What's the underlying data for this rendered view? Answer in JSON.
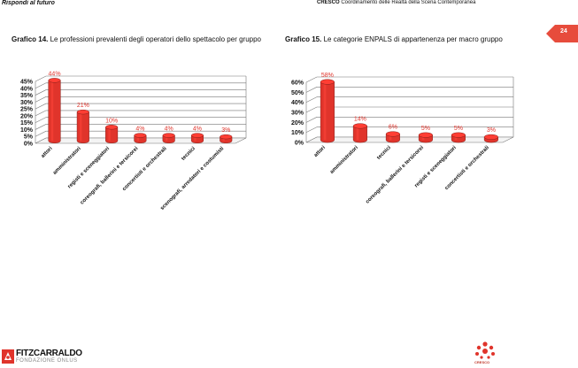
{
  "header": {
    "left": "Rispondi al futuro",
    "right_brand": "CRESCO",
    "right_rest": "Coordinamento delle Realtà della Scena Contemporanea",
    "page_number": "24",
    "tab_color": "#e74c3c"
  },
  "chart_data": [
    {
      "type": "bar",
      "title_bold": "Grafico 14.",
      "title_rest": "Le professioni prevalenti degli operatori dello spettacolo per gruppo",
      "categories": [
        "attori",
        "amministratori",
        "registi e sceneggiatori",
        "coreografi, ballerini e tersicorei",
        "concertisti e orchestrali",
        "tecnici",
        "scenografi, arredatori e costumisti"
      ],
      "values": [
        44,
        21,
        10,
        4,
        4,
        4,
        3
      ],
      "data_labels": [
        "44%",
        "21%",
        "10%",
        "4%",
        "4%",
        "4%",
        "3%"
      ],
      "yticks": [
        "0%",
        "5%",
        "10%",
        "15%",
        "20%",
        "25%",
        "30%",
        "35%",
        "40%",
        "45%"
      ],
      "ylim": [
        0,
        45
      ],
      "bar_color": "#e0342b",
      "label_color": "#e0342b"
    },
    {
      "type": "bar",
      "title_bold": "Grafico 15.",
      "title_rest": "Le categorie ENPALS di appartenenza per macro gruppo",
      "categories": [
        "attori",
        "amministratori",
        "tecnici",
        "coreografi, ballerini e tersicorei",
        "registi e sceneggiatori",
        "concertisti e orchestrali"
      ],
      "values": [
        58,
        14,
        6,
        5,
        5,
        3
      ],
      "data_labels": [
        "58%",
        "14%",
        "6%",
        "5%",
        "5%",
        "3%"
      ],
      "yticks": [
        "0%",
        "10%",
        "20%",
        "30%",
        "40%",
        "50%",
        "60%"
      ],
      "ylim": [
        0,
        60
      ],
      "bar_color": "#e0342b",
      "label_color": "#e0342b"
    }
  ],
  "footer": {
    "name": "FITZCARRALDO",
    "sub": "FONDAZIONE ONLUS",
    "right_label": "CRESCO"
  }
}
